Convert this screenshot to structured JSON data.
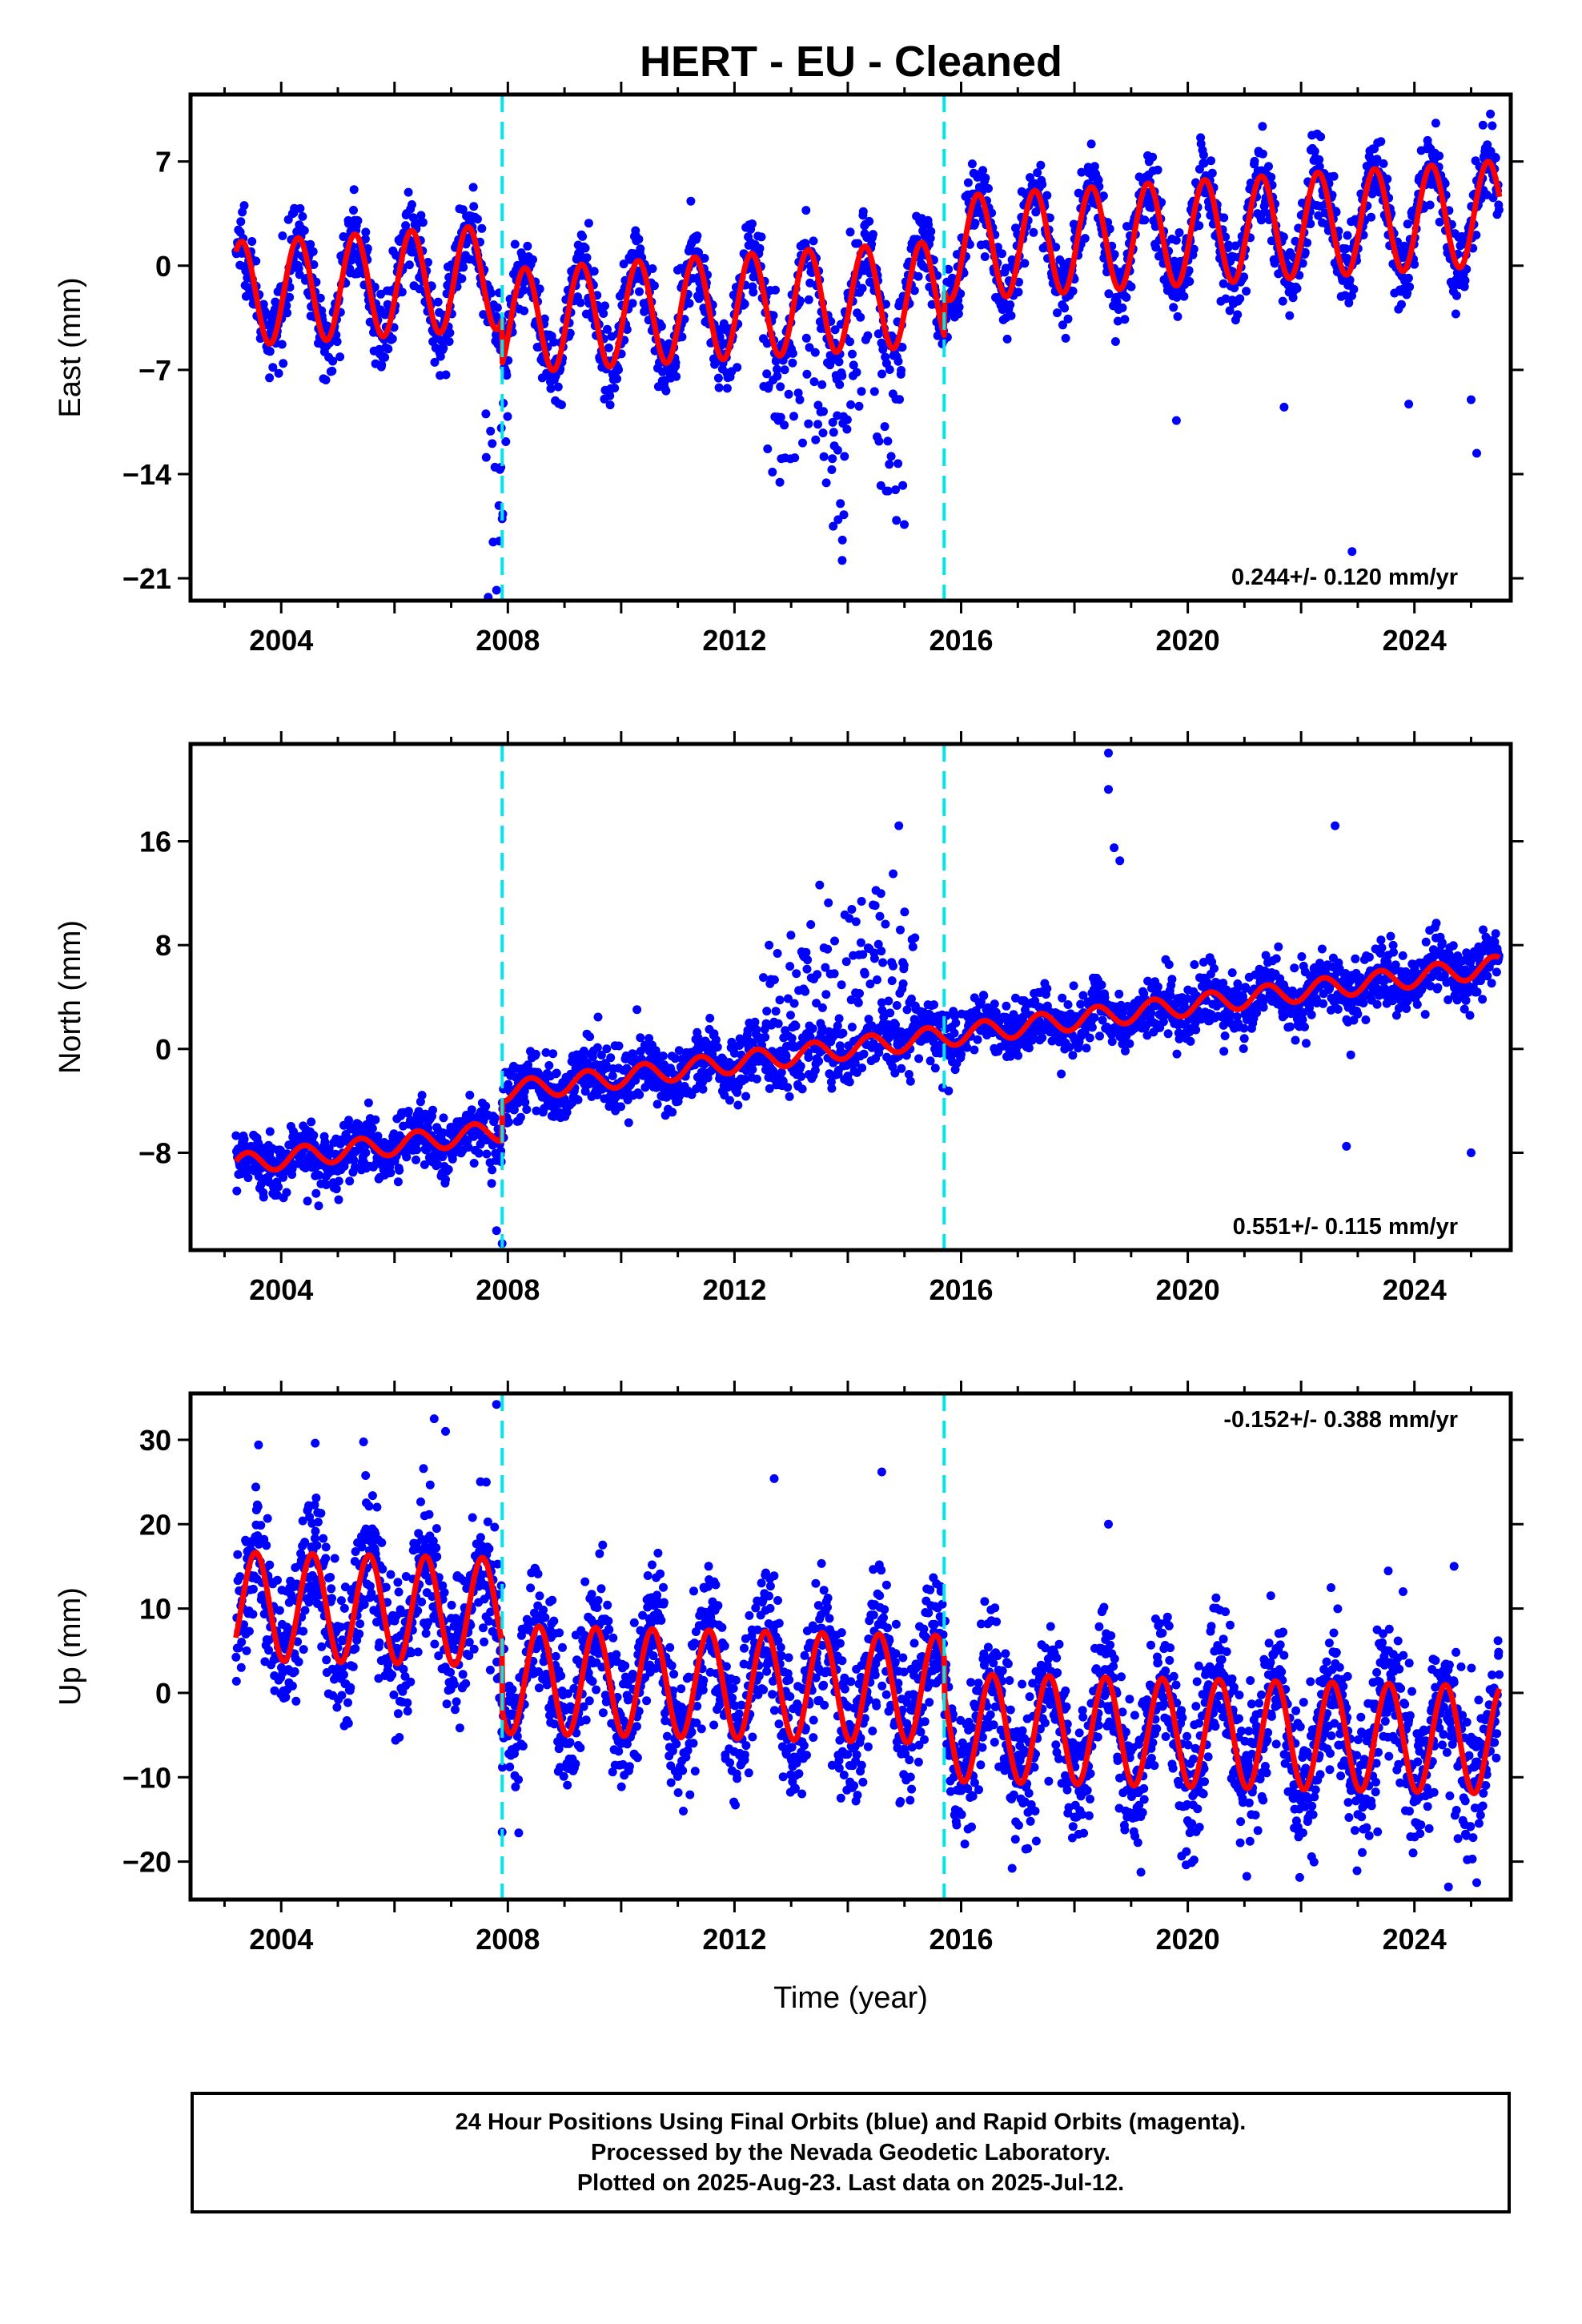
{
  "chart_data": [
    {
      "type": "scatter",
      "title": "HERT  - EU - Cleaned",
      "ylabel": "East (mm)",
      "xlabel": "",
      "rate_label": "0.244+/- 0.120 mm/yr",
      "xlim": [
        2002.4,
        2025.7
      ],
      "ylim": [
        -22.5,
        11.5
      ],
      "yticks": [
        7,
        0,
        -7,
        -14,
        -21
      ],
      "xticks": [
        2004,
        2008,
        2012,
        2016,
        2020,
        2024
      ],
      "breaks": [
        2007.9,
        2015.7
      ],
      "model": {
        "start": 2003.2,
        "end": 2025.5,
        "offset0": -1.9,
        "rate": 0.244,
        "amp": 3.5,
        "phase_peak": 0.3,
        "steps": [
          {
            "t": 2007.9,
            "dy": -3.0
          },
          {
            "t": 2015.7,
            "dy": 3.0
          }
        ]
      },
      "scatter": {
        "sigma": 1.3,
        "n": 2600,
        "excursions": [
          {
            "start": 2012.5,
            "end": 2015.0,
            "mean": -7,
            "spread": 6
          },
          {
            "start": 2007.6,
            "end": 2008.0,
            "mean": -8,
            "spread": 7
          }
        ],
        "outliers": [
          [
            2007.8,
            -21.8
          ],
          [
            2007.85,
            -18.5
          ],
          [
            2007.9,
            -17
          ],
          [
            2013.9,
            -19.8
          ],
          [
            2022.9,
            -19.2
          ],
          [
            2025.1,
            -12.6
          ],
          [
            2019.8,
            -10.4
          ],
          [
            2021.7,
            -9.5
          ],
          [
            2023.9,
            -9.3
          ],
          [
            2025.0,
            -9
          ]
        ]
      },
      "series": [
        {
          "name": "Final Orbits (blue)",
          "color": "#0000ff"
        },
        {
          "name": "Model fit",
          "color": "#ff0000"
        }
      ],
      "break_color": "#00e5ee"
    },
    {
      "type": "scatter",
      "title": "",
      "ylabel": "North (mm)",
      "xlabel": "",
      "rate_label": "0.551+/- 0.115 mm/yr",
      "xlim": [
        2002.4,
        2025.7
      ],
      "ylim": [
        -15.5,
        23.5
      ],
      "yticks": [
        16,
        8,
        0,
        -8
      ],
      "xticks": [
        2004,
        2008,
        2012,
        2016,
        2020,
        2024
      ],
      "breaks": [
        2007.9,
        2015.7
      ],
      "model": {
        "start": 2003.2,
        "end": 2025.5,
        "offset0": -8.9,
        "rate": 0.551,
        "amp": 0.8,
        "phase_peak": 0.4,
        "steps": [
          {
            "t": 2007.9,
            "dy": 3.0
          }
        ]
      },
      "scatter": {
        "sigma": 1.2,
        "n": 2600,
        "excursions": [
          {
            "start": 2012.5,
            "end": 2015.2,
            "mean": 6,
            "spread": 5
          }
        ],
        "outliers": [
          [
            2018.6,
            22.8
          ],
          [
            2018.6,
            20
          ],
          [
            2018.7,
            15.5
          ],
          [
            2018.8,
            14.5
          ],
          [
            2022.6,
            17.2
          ],
          [
            2014.9,
            17.2
          ],
          [
            2014.8,
            13.5
          ],
          [
            2007.8,
            -14
          ],
          [
            2007.9,
            -15
          ],
          [
            2022.8,
            -7.5
          ],
          [
            2025.0,
            -8
          ]
        ]
      },
      "series": [
        {
          "name": "Final Orbits (blue)",
          "color": "#0000ff"
        },
        {
          "name": "Model fit",
          "color": "#ff0000"
        }
      ],
      "break_color": "#00e5ee"
    },
    {
      "type": "scatter",
      "title": "",
      "ylabel": "Up (mm)",
      "xlabel": "Time (year)",
      "rate_label": "-0.152+/- 0.388 mm/yr",
      "xlim": [
        2002.4,
        2025.7
      ],
      "ylim": [
        -24.5,
        35.5
      ],
      "yticks": [
        30,
        20,
        10,
        0,
        -10,
        -20
      ],
      "xticks": [
        2004,
        2008,
        2012,
        2016,
        2020,
        2024
      ],
      "breaks": [
        2007.9,
        2015.7
      ],
      "model": {
        "start": 2003.2,
        "end": 2025.5,
        "offset0": 10.3,
        "rate": -0.152,
        "amp": 6.4,
        "phase_peak": 0.55,
        "steps": [
          {
            "t": 2007.9,
            "dy": -8.0
          },
          {
            "t": 2015.7,
            "dy": -4.5
          }
        ]
      },
      "scatter": {
        "sigma": 4.2,
        "n": 3200,
        "excursions": [],
        "outliers": [
          [
            2007.8,
            34.2
          ],
          [
            2006.7,
            32.5
          ],
          [
            2006.9,
            31
          ],
          [
            2004.6,
            29.6
          ],
          [
            2003.6,
            29.4
          ],
          [
            2012.7,
            25.4
          ],
          [
            2014.6,
            26.2
          ],
          [
            2018.6,
            20
          ],
          [
            2024.7,
            15
          ],
          [
            2023.8,
            12
          ],
          [
            2016.9,
            -20.8
          ],
          [
            2024.6,
            -23
          ],
          [
            2025.1,
            -22.5
          ],
          [
            2007.9,
            -16.5
          ]
        ]
      },
      "series": [
        {
          "name": "Final Orbits (blue)",
          "color": "#0000ff"
        },
        {
          "name": "Model fit",
          "color": "#ff0000"
        }
      ],
      "break_color": "#00e5ee"
    }
  ],
  "footer": {
    "line1": "24 Hour Positions Using Final Orbits (blue) and Rapid Orbits (magenta).",
    "line2": "Processed by the Nevada Geodetic Laboratory.",
    "line3": "Plotted on 2025-Aug-23. Last data on 2025-Jul-12."
  }
}
